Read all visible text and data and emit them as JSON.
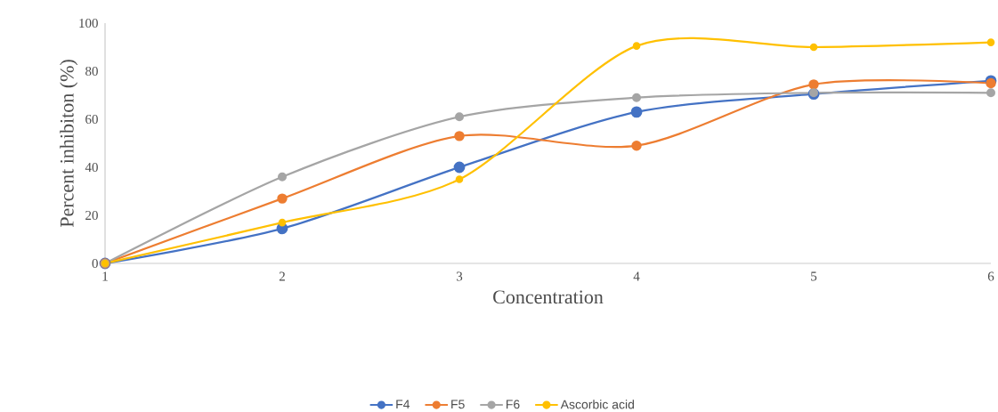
{
  "chart_data": {
    "type": "line",
    "xlabel": "Concentration",
    "ylabel": "Percent inhibiton (%)",
    "categories": [
      "1",
      "2",
      "3",
      "4",
      "5",
      "6"
    ],
    "series": [
      {
        "name": "F4",
        "color": "#4472c4",
        "values": [
          0,
          14.5,
          40,
          63,
          70.5,
          76
        ]
      },
      {
        "name": "F5",
        "color": "#ed7d31",
        "values": [
          0,
          27,
          53,
          49,
          74.5,
          75
        ]
      },
      {
        "name": "F6",
        "color": "#a5a5a5",
        "values": [
          0,
          36,
          61,
          69,
          71,
          71
        ]
      },
      {
        "name": "Ascorbic acid",
        "color": "#ffc000",
        "values": [
          0,
          17,
          35,
          90.5,
          90,
          92
        ]
      }
    ],
    "ylim": [
      0,
      100
    ],
    "yticks": [
      0,
      20,
      40,
      60,
      80,
      100
    ],
    "grid": false,
    "legend": "bottom",
    "marker": "circle",
    "line_style": "solid"
  }
}
